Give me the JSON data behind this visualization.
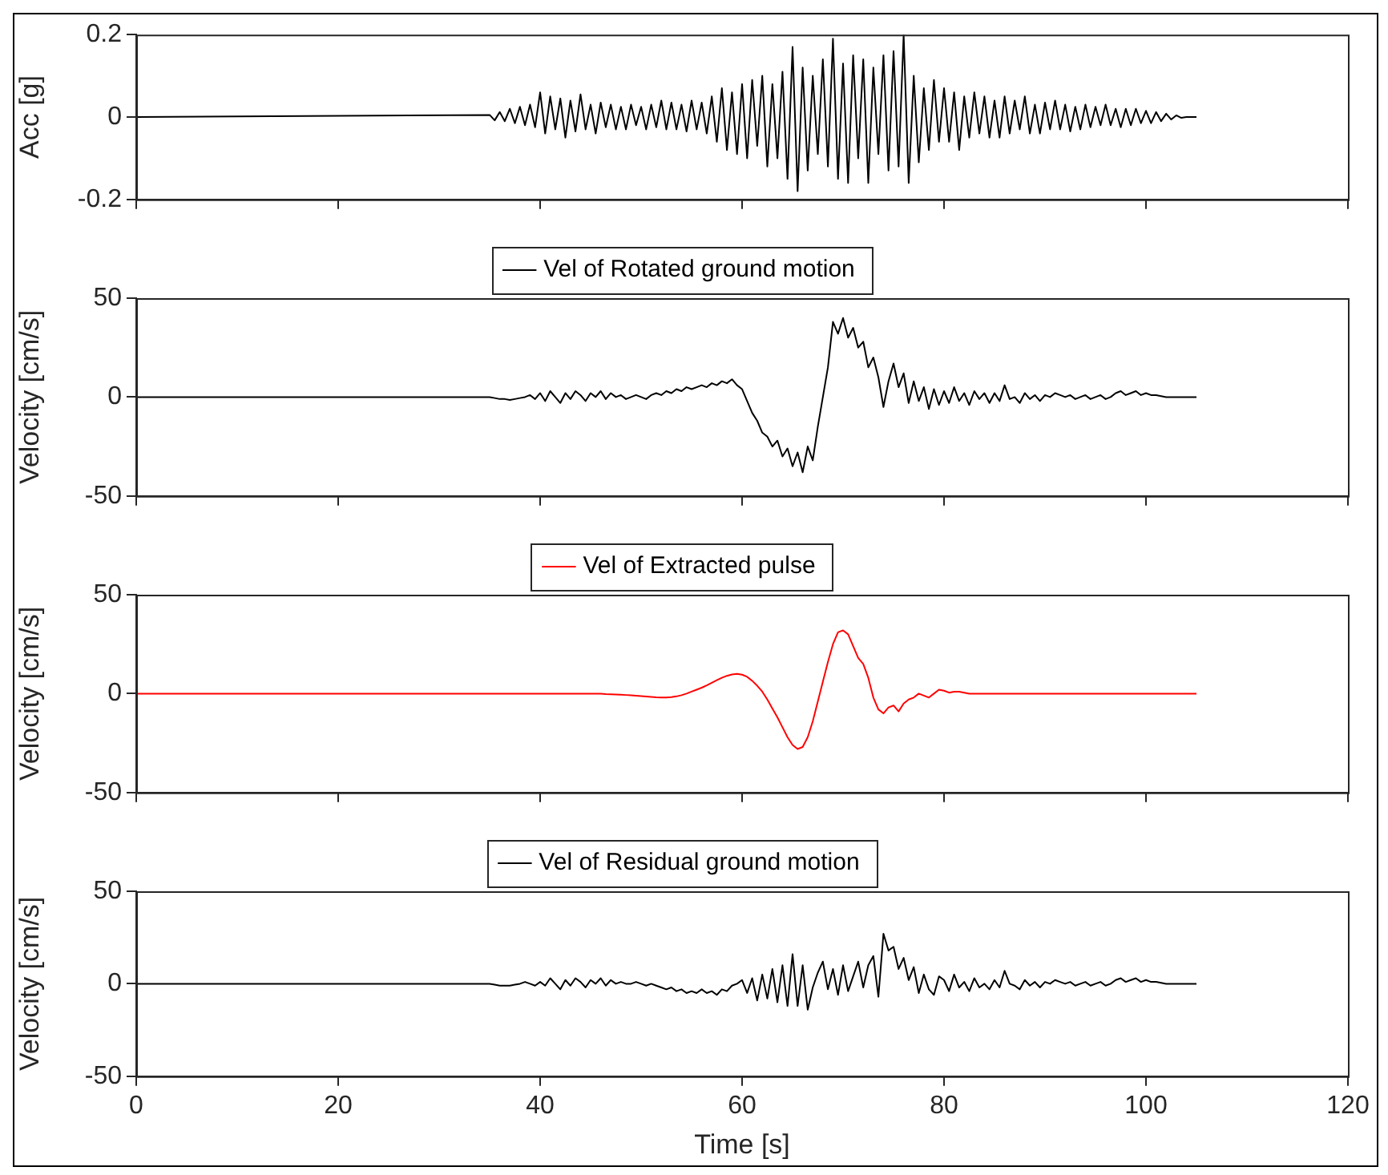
{
  "chart_data": [
    {
      "type": "line",
      "ylabel": "Acc [g]",
      "xlim": [
        0,
        120
      ],
      "xticks": [
        0,
        20,
        40,
        60,
        80,
        100,
        120
      ],
      "ylim": [
        -0.2,
        0.2
      ],
      "yticks": [
        -0.2,
        0,
        0.2
      ],
      "tick_labels": "y",
      "grid": false,
      "legend": false,
      "marker": "none",
      "x": [
        0,
        35,
        35.5,
        36,
        36.5,
        37,
        37.5,
        38,
        38.5,
        39,
        39.5,
        40,
        40.5,
        41,
        41.5,
        42,
        42.5,
        43,
        43.5,
        44,
        44.5,
        45,
        45.5,
        46,
        46.5,
        47,
        47.5,
        48,
        48.5,
        49,
        49.5,
        50,
        50.5,
        51,
        51.5,
        52,
        52.5,
        53,
        53.5,
        54,
        54.5,
        55,
        55.5,
        56,
        56.5,
        57,
        57.5,
        58,
        58.5,
        59,
        59.5,
        60,
        60.5,
        61,
        61.5,
        62,
        62.5,
        63,
        63.5,
        64,
        64.5,
        65,
        65.5,
        66,
        66.5,
        67,
        67.5,
        68,
        68.5,
        69,
        69.5,
        70,
        70.5,
        71,
        71.5,
        72,
        72.5,
        73,
        73.5,
        74,
        74.5,
        75,
        75.5,
        76,
        76.5,
        77,
        77.5,
        78,
        78.5,
        79,
        79.5,
        80,
        80.5,
        81,
        81.5,
        82,
        82.5,
        83,
        83.5,
        84,
        84.5,
        85,
        85.5,
        86,
        86.5,
        87,
        87.5,
        88,
        88.5,
        89,
        89.5,
        90,
        90.5,
        91,
        91.5,
        92,
        92.5,
        93,
        93.5,
        94,
        94.5,
        95,
        95.5,
        96,
        96.5,
        97,
        97.5,
        98,
        98.5,
        99,
        99.5,
        100,
        100.5,
        101,
        101.5,
        102,
        102.5,
        103,
        103.5,
        104,
        104.5,
        105
      ],
      "series": [
        {
          "color": "#000000",
          "values": [
            0,
            0.005,
            -0.008,
            0.012,
            -0.01,
            0.02,
            -0.015,
            0.025,
            -0.02,
            0.03,
            -0.025,
            0.06,
            -0.04,
            0.05,
            -0.03,
            0.045,
            -0.05,
            0.04,
            -0.035,
            0.055,
            -0.03,
            0.03,
            -0.04,
            0.035,
            -0.025,
            0.03,
            -0.03,
            0.025,
            -0.03,
            0.03,
            -0.02,
            0.025,
            -0.03,
            0.03,
            -0.025,
            0.04,
            -0.03,
            0.035,
            -0.03,
            0.03,
            -0.035,
            0.04,
            -0.03,
            0.035,
            -0.04,
            0.05,
            -0.06,
            0.07,
            -0.08,
            0.06,
            -0.09,
            0.08,
            -0.1,
            0.09,
            -0.07,
            0.1,
            -0.12,
            0.08,
            -0.1,
            0.11,
            -0.15,
            0.17,
            -0.18,
            0.12,
            -0.13,
            0.1,
            -0.09,
            0.14,
            -0.12,
            0.19,
            -0.15,
            0.13,
            -0.16,
            0.15,
            -0.1,
            0.14,
            -0.16,
            0.12,
            -0.09,
            0.15,
            -0.13,
            0.16,
            -0.12,
            0.2,
            -0.16,
            0.1,
            -0.11,
            0.07,
            -0.08,
            0.09,
            -0.06,
            0.07,
            -0.06,
            0.06,
            -0.08,
            0.05,
            -0.05,
            0.06,
            -0.04,
            0.05,
            -0.05,
            0.04,
            -0.05,
            0.05,
            -0.04,
            0.04,
            -0.03,
            0.05,
            -0.04,
            0.03,
            -0.04,
            0.035,
            -0.03,
            0.04,
            -0.03,
            0.03,
            -0.035,
            0.025,
            -0.03,
            0.03,
            -0.025,
            0.025,
            -0.02,
            0.03,
            -0.02,
            0.02,
            -0.025,
            0.02,
            -0.02,
            0.02,
            -0.015,
            0.015,
            -0.015,
            0.012,
            -0.01,
            0.008,
            -0.006,
            0.004,
            -0.002,
            0,
            0,
            0
          ]
        }
      ]
    },
    {
      "type": "line",
      "ylabel": "Velocity [cm/s]",
      "xlim": [
        0,
        120
      ],
      "xticks": [
        0,
        20,
        40,
        60,
        80,
        100,
        120
      ],
      "ylim": [
        -50,
        50
      ],
      "yticks": [
        -50,
        0,
        50
      ],
      "tick_labels": "y",
      "grid": false,
      "legend": "top",
      "marker": "none",
      "x": [
        0,
        35,
        35.5,
        36,
        36.5,
        37,
        37.5,
        38,
        38.5,
        39,
        39.5,
        40,
        40.5,
        41,
        41.5,
        42,
        42.5,
        43,
        43.5,
        44,
        44.5,
        45,
        45.5,
        46,
        46.5,
        47,
        47.5,
        48,
        48.5,
        49,
        49.5,
        50,
        50.5,
        51,
        51.5,
        52,
        52.5,
        53,
        53.5,
        54,
        54.5,
        55,
        55.5,
        56,
        56.5,
        57,
        57.5,
        58,
        58.5,
        59,
        59.5,
        60,
        60.5,
        61,
        61.5,
        62,
        62.5,
        63,
        63.5,
        64,
        64.5,
        65,
        65.5,
        66,
        66.5,
        67,
        67.5,
        68,
        68.5,
        69,
        69.5,
        70,
        70.5,
        71,
        71.5,
        72,
        72.5,
        73,
        73.5,
        74,
        74.5,
        75,
        75.5,
        76,
        76.5,
        77,
        77.5,
        78,
        78.5,
        79,
        79.5,
        80,
        80.5,
        81,
        81.5,
        82,
        82.5,
        83,
        83.5,
        84,
        84.5,
        85,
        85.5,
        86,
        86.5,
        87,
        87.5,
        88,
        88.5,
        89,
        89.5,
        90,
        90.5,
        91,
        91.5,
        92,
        92.5,
        93,
        93.5,
        94,
        94.5,
        95,
        95.5,
        96,
        96.5,
        97,
        97.5,
        98,
        98.5,
        99,
        99.5,
        100,
        100.5,
        101,
        101.5,
        102,
        102.5,
        103,
        103.5,
        104,
        104.5,
        105
      ],
      "series": [
        {
          "name": "Vel of Rotated ground motion",
          "color": "#000000",
          "values": [
            0,
            0,
            -0.5,
            -1,
            -1,
            -1.5,
            -1,
            -0.5,
            0,
            1,
            -1,
            2,
            -2,
            3,
            0,
            -3,
            2,
            -1,
            3,
            1,
            -2,
            2,
            0,
            3,
            -1,
            2,
            0,
            1,
            -1,
            0,
            1,
            0,
            -1,
            1,
            2,
            1,
            3,
            2,
            4,
            3,
            5,
            4,
            5,
            6,
            5,
            7,
            6,
            8,
            7,
            9,
            6,
            4,
            -2,
            -8,
            -12,
            -18,
            -20,
            -25,
            -22,
            -30,
            -26,
            -35,
            -28,
            -38,
            -25,
            -32,
            -15,
            0,
            15,
            38,
            32,
            40,
            30,
            35,
            25,
            28,
            15,
            20,
            10,
            -5,
            8,
            17,
            5,
            12,
            -3,
            8,
            -2,
            5,
            -6,
            4,
            -4,
            3,
            -3,
            5,
            -2,
            2,
            -4,
            3,
            -1,
            2,
            -3,
            2,
            -2,
            6,
            -1,
            0,
            -3,
            2,
            -1,
            1,
            -2,
            1,
            0,
            2,
            1,
            0,
            1,
            -1,
            0,
            1,
            -1,
            0,
            1,
            -1,
            0,
            2,
            3,
            1,
            2,
            3,
            1,
            2,
            1,
            1,
            0.5,
            0,
            0,
            0,
            0,
            0,
            0,
            0
          ]
        }
      ]
    },
    {
      "type": "line",
      "ylabel": "Velocity [cm/s]",
      "xlim": [
        0,
        120
      ],
      "xticks": [
        0,
        20,
        40,
        60,
        80,
        100,
        120
      ],
      "ylim": [
        -50,
        50
      ],
      "yticks": [
        -50,
        0,
        50
      ],
      "tick_labels": "y",
      "grid": false,
      "legend": "top",
      "marker": "none",
      "x": [
        0,
        35,
        35.5,
        36,
        36.5,
        37,
        37.5,
        38,
        38.5,
        39,
        39.5,
        40,
        40.5,
        41,
        41.5,
        42,
        42.5,
        43,
        43.5,
        44,
        44.5,
        45,
        45.5,
        46,
        46.5,
        47,
        47.5,
        48,
        48.5,
        49,
        49.5,
        50,
        50.5,
        51,
        51.5,
        52,
        52.5,
        53,
        53.5,
        54,
        54.5,
        55,
        55.5,
        56,
        56.5,
        57,
        57.5,
        58,
        58.5,
        59,
        59.5,
        60,
        60.5,
        61,
        61.5,
        62,
        62.5,
        63,
        63.5,
        64,
        64.5,
        65,
        65.5,
        66,
        66.5,
        67,
        67.5,
        68,
        68.5,
        69,
        69.5,
        70,
        70.5,
        71,
        71.5,
        72,
        72.5,
        73,
        73.5,
        74,
        74.5,
        75,
        75.5,
        76,
        76.5,
        77,
        77.5,
        78,
        78.5,
        79,
        79.5,
        80,
        80.5,
        81,
        81.5,
        82,
        82.5,
        83,
        83.5,
        84,
        84.5,
        85,
        85.5,
        86,
        86.5,
        87,
        87.5,
        88,
        88.5,
        89,
        89.5,
        90,
        90.5,
        91,
        91.5,
        92,
        92.5,
        93,
        93.5,
        94,
        94.5,
        95,
        95.5,
        96,
        96.5,
        97,
        97.5,
        98,
        98.5,
        99,
        99.5,
        100,
        100.5,
        101,
        101.5,
        102,
        102.5,
        103,
        103.5,
        104,
        104.5,
        105
      ],
      "series": [
        {
          "name": "Vel of Extracted pulse",
          "color": "#ff0000",
          "values": [
            0,
            0,
            0,
            0,
            0,
            0,
            0,
            0,
            0,
            0,
            0,
            0,
            0,
            0,
            0,
            0,
            0,
            0,
            0,
            0,
            0,
            0,
            0,
            0,
            -0.2,
            -0.3,
            -0.4,
            -0.5,
            -0.7,
            -0.9,
            -1.1,
            -1.3,
            -1.5,
            -1.7,
            -1.9,
            -2,
            -2,
            -1.8,
            -1.4,
            -0.8,
            0,
            1,
            2,
            3,
            4.2,
            5.5,
            6.8,
            8,
            9,
            9.7,
            10,
            9.6,
            8.5,
            6.5,
            4,
            1,
            -3,
            -7.5,
            -12,
            -17,
            -22,
            -26,
            -28,
            -27,
            -22,
            -14,
            -4,
            6,
            16,
            25,
            31,
            32,
            30,
            24,
            18,
            15,
            8,
            -2,
            -8,
            -10,
            -7,
            -6,
            -9,
            -5,
            -3,
            -2,
            0,
            -1,
            -2,
            0,
            2,
            1.5,
            0.5,
            1,
            1,
            0.5,
            0,
            0,
            0,
            0,
            0,
            0,
            0,
            0,
            0,
            0,
            0,
            0,
            0,
            0,
            0,
            0,
            0,
            0,
            0,
            0,
            0,
            0,
            0,
            0,
            0,
            0,
            0,
            0,
            0,
            0,
            0,
            0,
            0,
            0,
            0,
            0,
            0,
            0,
            0,
            0,
            0,
            0,
            0,
            0,
            0,
            0
          ]
        }
      ]
    },
    {
      "type": "line",
      "xlabel": "Time [s]",
      "ylabel": "Velocity [cm/s]",
      "xlim": [
        0,
        120
      ],
      "xticks": [
        0,
        20,
        40,
        60,
        80,
        100,
        120
      ],
      "ylim": [
        -50,
        50
      ],
      "yticks": [
        -50,
        0,
        50
      ],
      "grid": false,
      "legend": "top",
      "marker": "none",
      "x": [
        0,
        35,
        35.5,
        36,
        36.5,
        37,
        37.5,
        38,
        38.5,
        39,
        39.5,
        40,
        40.5,
        41,
        41.5,
        42,
        42.5,
        43,
        43.5,
        44,
        44.5,
        45,
        45.5,
        46,
        46.5,
        47,
        47.5,
        48,
        48.5,
        49,
        49.5,
        50,
        50.5,
        51,
        51.5,
        52,
        52.5,
        53,
        53.5,
        54,
        54.5,
        55,
        55.5,
        56,
        56.5,
        57,
        57.5,
        58,
        58.5,
        59,
        59.5,
        60,
        60.5,
        61,
        61.5,
        62,
        62.5,
        63,
        63.5,
        64,
        64.5,
        65,
        65.5,
        66,
        66.5,
        67,
        67.5,
        68,
        68.5,
        69,
        69.5,
        70,
        70.5,
        71,
        71.5,
        72,
        72.5,
        73,
        73.5,
        74,
        74.5,
        75,
        75.5,
        76,
        76.5,
        77,
        77.5,
        78,
        78.5,
        79,
        79.5,
        80,
        80.5,
        81,
        81.5,
        82,
        82.5,
        83,
        83.5,
        84,
        84.5,
        85,
        85.5,
        86,
        86.5,
        87,
        87.5,
        88,
        88.5,
        89,
        89.5,
        90,
        90.5,
        91,
        91.5,
        92,
        92.5,
        93,
        93.5,
        94,
        94.5,
        95,
        95.5,
        96,
        96.5,
        97,
        97.5,
        98,
        98.5,
        99,
        99.5,
        100,
        100.5,
        101,
        101.5,
        102,
        102.5,
        103,
        103.5,
        104,
        104.5,
        105
      ],
      "series": [
        {
          "name": "Vel of Residual ground motion",
          "color": "#000000",
          "values": [
            0,
            0,
            -0.5,
            -1,
            -1,
            -1,
            -0.5,
            0,
            1,
            0,
            -1,
            1,
            -1,
            3,
            0,
            -3,
            2,
            -1,
            3,
            1,
            -2,
            2,
            0,
            3,
            -1,
            2,
            0,
            1,
            0,
            0,
            1,
            0,
            -1,
            0,
            -1,
            -2,
            -3,
            -2,
            -4,
            -3,
            -5,
            -4,
            -5,
            -3,
            -5,
            -4,
            -6,
            -3,
            -4,
            -1,
            0,
            2,
            -5,
            3,
            -9,
            5,
            -8,
            8,
            -10,
            10,
            -12,
            16,
            -12,
            10,
            -14,
            -2,
            6,
            12,
            -3,
            8,
            -6,
            10,
            -4,
            4,
            12,
            -2,
            10,
            15,
            -7,
            27,
            18,
            20,
            8,
            14,
            2,
            9,
            -5,
            5,
            -3,
            -6,
            4,
            2,
            -4,
            5,
            -2,
            1,
            -4,
            3,
            -2,
            0,
            -3,
            2,
            -2,
            7,
            0,
            -1,
            -3,
            2,
            -1,
            1,
            -2,
            1,
            0,
            2,
            1,
            0,
            1,
            -1,
            0,
            1,
            -1,
            0,
            1,
            -1,
            0,
            2,
            3,
            1,
            2,
            3,
            1,
            2,
            1,
            1,
            0.5,
            0,
            0,
            0,
            0,
            0,
            0,
            0
          ]
        }
      ]
    }
  ]
}
